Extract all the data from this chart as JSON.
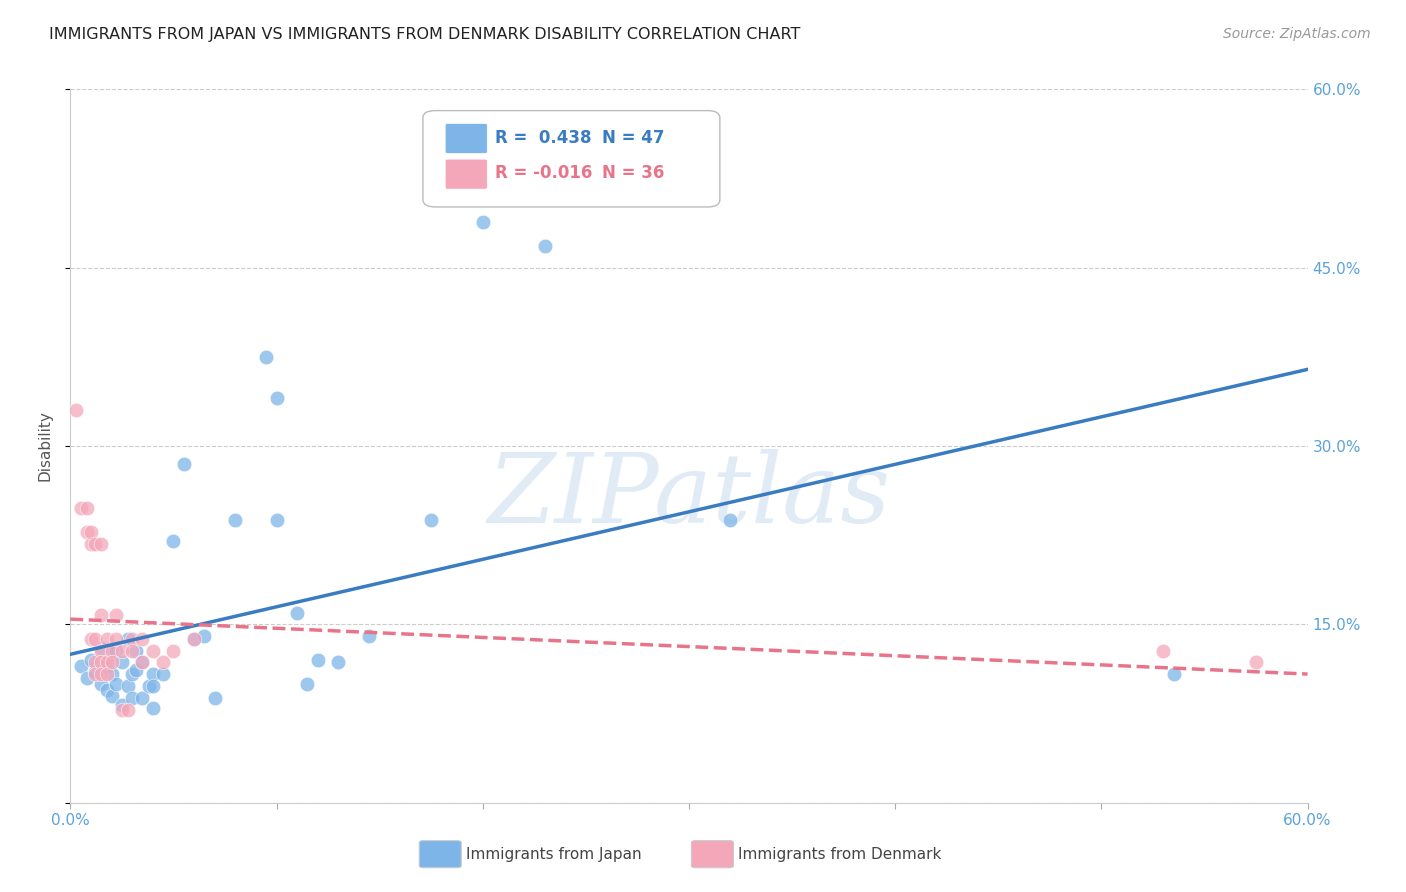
{
  "title": "IMMIGRANTS FROM JAPAN VS IMMIGRANTS FROM DENMARK DISABILITY CORRELATION CHART",
  "source": "Source: ZipAtlas.com",
  "ylabel": "Disability",
  "xlim": [
    0.0,
    0.6
  ],
  "ylim": [
    0.0,
    0.6
  ],
  "xticks": [
    0.0,
    0.1,
    0.2,
    0.3,
    0.4,
    0.5,
    0.6
  ],
  "yticks": [
    0.0,
    0.15,
    0.3,
    0.45,
    0.6
  ],
  "right_ytick_labels": [
    "",
    "15.0%",
    "30.0%",
    "45.0%",
    "60.0%"
  ],
  "xtick_labels": [
    "0.0%",
    "",
    "",
    "",
    "",
    "",
    "60.0%"
  ],
  "japan_color": "#7EB5E8",
  "denmark_color": "#F4A7B9",
  "japan_R": 0.438,
  "japan_N": 47,
  "denmark_R": -0.016,
  "denmark_N": 36,
  "japan_line_color": "#3A7CC1",
  "denmark_line_color": "#E8748A",
  "watermark": "ZIPatlas",
  "background_color": "#FFFFFF",
  "grid_color": "#CCCCCC",
  "axis_label_color": "#5BA3D9",
  "japan_scatter": [
    [
      0.005,
      0.115
    ],
    [
      0.008,
      0.105
    ],
    [
      0.01,
      0.12
    ],
    [
      0.012,
      0.11
    ],
    [
      0.015,
      0.13
    ],
    [
      0.015,
      0.1
    ],
    [
      0.018,
      0.095
    ],
    [
      0.018,
      0.115
    ],
    [
      0.02,
      0.108
    ],
    [
      0.02,
      0.125
    ],
    [
      0.02,
      0.09
    ],
    [
      0.022,
      0.1
    ],
    [
      0.022,
      0.128
    ],
    [
      0.025,
      0.118
    ],
    [
      0.025,
      0.082
    ],
    [
      0.028,
      0.138
    ],
    [
      0.028,
      0.098
    ],
    [
      0.03,
      0.108
    ],
    [
      0.03,
      0.088
    ],
    [
      0.032,
      0.112
    ],
    [
      0.032,
      0.128
    ],
    [
      0.035,
      0.088
    ],
    [
      0.035,
      0.118
    ],
    [
      0.038,
      0.098
    ],
    [
      0.04,
      0.08
    ],
    [
      0.04,
      0.108
    ],
    [
      0.04,
      0.098
    ],
    [
      0.045,
      0.108
    ],
    [
      0.05,
      0.22
    ],
    [
      0.055,
      0.285
    ],
    [
      0.06,
      0.138
    ],
    [
      0.065,
      0.14
    ],
    [
      0.07,
      0.088
    ],
    [
      0.08,
      0.238
    ],
    [
      0.095,
      0.375
    ],
    [
      0.1,
      0.34
    ],
    [
      0.1,
      0.238
    ],
    [
      0.11,
      0.16
    ],
    [
      0.115,
      0.1
    ],
    [
      0.12,
      0.12
    ],
    [
      0.13,
      0.118
    ],
    [
      0.145,
      0.14
    ],
    [
      0.175,
      0.238
    ],
    [
      0.2,
      0.488
    ],
    [
      0.23,
      0.468
    ],
    [
      0.32,
      0.238
    ],
    [
      0.535,
      0.108
    ]
  ],
  "denmark_scatter": [
    [
      0.003,
      0.33
    ],
    [
      0.005,
      0.248
    ],
    [
      0.008,
      0.248
    ],
    [
      0.008,
      0.228
    ],
    [
      0.01,
      0.218
    ],
    [
      0.01,
      0.228
    ],
    [
      0.01,
      0.138
    ],
    [
      0.012,
      0.218
    ],
    [
      0.012,
      0.138
    ],
    [
      0.012,
      0.118
    ],
    [
      0.012,
      0.108
    ],
    [
      0.015,
      0.218
    ],
    [
      0.015,
      0.158
    ],
    [
      0.015,
      0.128
    ],
    [
      0.015,
      0.118
    ],
    [
      0.015,
      0.108
    ],
    [
      0.018,
      0.138
    ],
    [
      0.018,
      0.118
    ],
    [
      0.018,
      0.108
    ],
    [
      0.02,
      0.128
    ],
    [
      0.02,
      0.118
    ],
    [
      0.022,
      0.158
    ],
    [
      0.022,
      0.138
    ],
    [
      0.025,
      0.128
    ],
    [
      0.025,
      0.078
    ],
    [
      0.028,
      0.078
    ],
    [
      0.03,
      0.138
    ],
    [
      0.03,
      0.128
    ],
    [
      0.035,
      0.138
    ],
    [
      0.035,
      0.118
    ],
    [
      0.04,
      0.128
    ],
    [
      0.045,
      0.118
    ],
    [
      0.05,
      0.128
    ],
    [
      0.06,
      0.138
    ],
    [
      0.53,
      0.128
    ],
    [
      0.575,
      0.118
    ]
  ]
}
